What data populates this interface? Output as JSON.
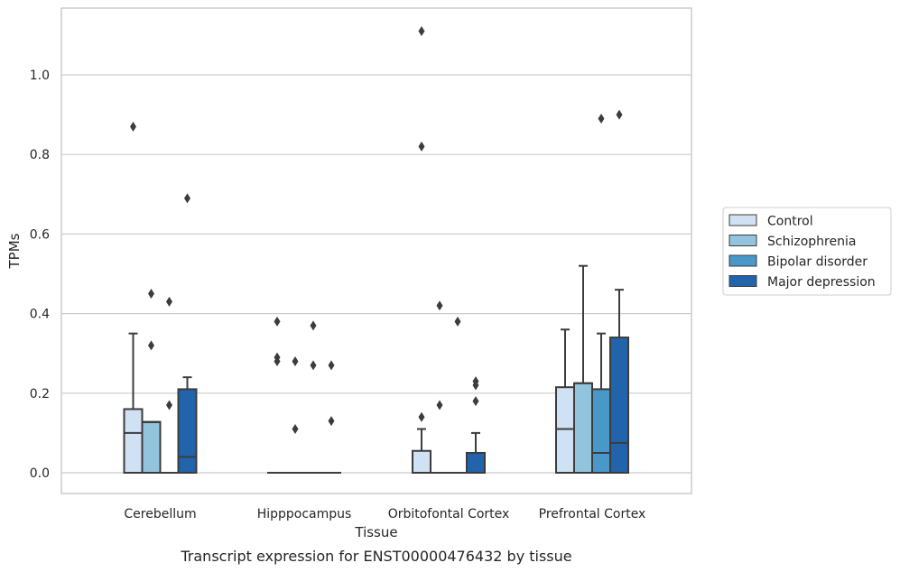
{
  "chart_data": {
    "type": "box",
    "xlabel": "Tissue",
    "ylabel": "TPMs",
    "caption": "Transcript expression for ENST00000476432 by tissue",
    "ylim": [
      -0.055,
      1.17
    ],
    "yticks": [
      0.0,
      0.2,
      0.4,
      0.6,
      0.8,
      1.0
    ],
    "ytick_labels": [
      "0.0",
      "0.2",
      "0.4",
      "0.6",
      "0.8",
      "1.0"
    ],
    "grid": "horizontal",
    "legend_position": "outside-right",
    "categories": [
      "Cerebellum",
      "Hipppocampus",
      "Orbitofontal Cortex",
      "Prefrontal Cortex"
    ],
    "series": [
      {
        "name": "Control",
        "color": "#cfe1f2",
        "boxes": [
          {
            "q1": 0,
            "median": 0.1,
            "q3": 0.16,
            "whisker_low": 0,
            "whisker_high": 0.35,
            "outliers": [
              0.87
            ]
          },
          {
            "q1": 0,
            "median": 0,
            "q3": 0,
            "whisker_low": 0,
            "whisker_high": 0,
            "outliers": [
              0.28,
              0.29,
              0.38
            ]
          },
          {
            "q1": 0,
            "median": 0,
            "q3": 0.055,
            "whisker_low": 0,
            "whisker_high": 0.11,
            "outliers": [
              0.14,
              0.82,
              1.11
            ]
          },
          {
            "q1": 0,
            "median": 0.11,
            "q3": 0.215,
            "whisker_low": 0,
            "whisker_high": 0.36,
            "outliers": []
          }
        ]
      },
      {
        "name": "Schizophrenia",
        "color": "#93c4de",
        "boxes": [
          {
            "q1": 0,
            "median": 0.127,
            "q3": 0.128,
            "whisker_low": 0,
            "whisker_high": 0.128,
            "outliers": [
              0.32,
              0.45
            ]
          },
          {
            "q1": 0,
            "median": 0,
            "q3": 0,
            "whisker_low": 0,
            "whisker_high": 0,
            "outliers": [
              0.11,
              0.28
            ]
          },
          {
            "q1": 0,
            "median": 0,
            "q3": 0,
            "whisker_low": 0,
            "whisker_high": 0,
            "outliers": [
              0.17,
              0.42
            ]
          },
          {
            "q1": 0,
            "median": 0.225,
            "q3": 0.225,
            "whisker_low": 0,
            "whisker_high": 0.52,
            "outliers": []
          }
        ]
      },
      {
        "name": "Bipolar disorder",
        "color": "#4a98c9",
        "boxes": [
          {
            "q1": 0,
            "median": 0,
            "q3": 0,
            "whisker_low": 0,
            "whisker_high": 0,
            "outliers": [
              0.17,
              0.43
            ]
          },
          {
            "q1": 0,
            "median": 0,
            "q3": 0,
            "whisker_low": 0,
            "whisker_high": 0,
            "outliers": [
              0.27,
              0.37
            ]
          },
          {
            "q1": 0,
            "median": 0,
            "q3": 0,
            "whisker_low": 0,
            "whisker_high": 0,
            "outliers": [
              0.38
            ]
          },
          {
            "q1": 0,
            "median": 0.05,
            "q3": 0.21,
            "whisker_low": 0,
            "whisker_high": 0.35,
            "outliers": [
              0.89
            ]
          }
        ]
      },
      {
        "name": "Major depression",
        "color": "#2164ab",
        "boxes": [
          {
            "q1": 0,
            "median": 0.04,
            "q3": 0.21,
            "whisker_low": 0,
            "whisker_high": 0.24,
            "outliers": [
              0.69
            ]
          },
          {
            "q1": 0,
            "median": 0,
            "q3": 0,
            "whisker_low": 0,
            "whisker_high": 0,
            "outliers": [
              0.13,
              0.27
            ]
          },
          {
            "q1": 0,
            "median": 0,
            "q3": 0.05,
            "whisker_low": 0,
            "whisker_high": 0.1,
            "outliers": [
              0.18,
              0.22,
              0.23
            ]
          },
          {
            "q1": 0,
            "median": 0.075,
            "q3": 0.34,
            "whisker_low": 0,
            "whisker_high": 0.46,
            "outliers": [
              0.9
            ]
          }
        ]
      }
    ]
  }
}
